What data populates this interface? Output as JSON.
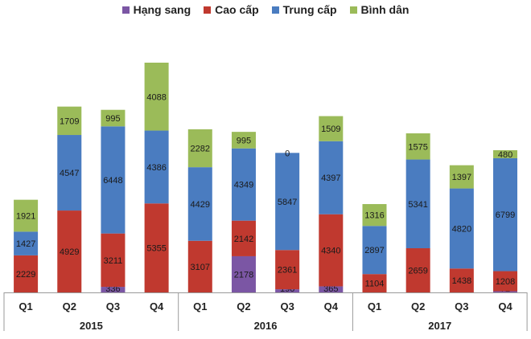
{
  "chart_data": {
    "type": "bar",
    "stacked": true,
    "groups": [
      {
        "label": "2015",
        "quarters": [
          "Q1",
          "Q2",
          "Q3",
          "Q4"
        ]
      },
      {
        "label": "2016",
        "quarters": [
          "Q1",
          "Q2",
          "Q3",
          "Q4"
        ]
      },
      {
        "label": "2017",
        "quarters": [
          "Q1",
          "Q2",
          "Q3",
          "Q4"
        ]
      }
    ],
    "series": [
      {
        "name": "Hạng sang",
        "color": "#7b56a4",
        "values": [
          0,
          0,
          336,
          0,
          0,
          2178,
          190,
          365,
          0,
          0,
          0,
          72
        ]
      },
      {
        "name": "Cao cấp",
        "color": "#c0392f",
        "values": [
          2229,
          4929,
          3211,
          5355,
          3107,
          2142,
          2361,
          4340,
          1104,
          2659,
          1438,
          1208
        ]
      },
      {
        "name": "Trung cấp",
        "color": "#4a7cc0",
        "values": [
          1427,
          4547,
          6448,
          4386,
          4429,
          4349,
          5847,
          4397,
          2897,
          5341,
          4820,
          6799
        ]
      },
      {
        "name": "Bình dân",
        "color": "#9bbb59",
        "values": [
          1921,
          1709,
          995,
          4088,
          2282,
          995,
          0,
          1509,
          1316,
          1575,
          1397,
          480
        ]
      }
    ],
    "legend_position": "top",
    "grid": false,
    "ylim": [
      0,
      15000
    ]
  }
}
